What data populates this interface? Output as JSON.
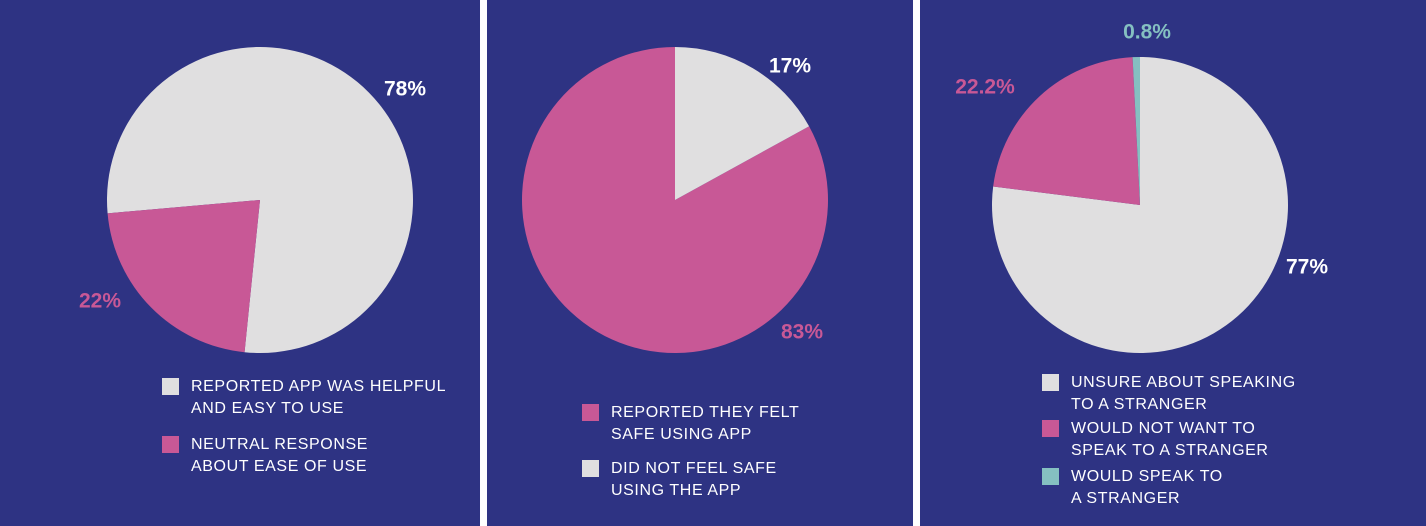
{
  "chart_data": [
    {
      "type": "pie",
      "categories": [
        "REPORTED APP WAS HELPFUL\nAND EASY TO USE",
        "NEUTRAL RESPONSE\nABOUT EASE OF USE"
      ],
      "values": [
        78,
        22
      ],
      "value_labels": [
        "78%",
        "22%"
      ],
      "colors": [
        "#e0dfe0",
        "#c85896"
      ]
    },
    {
      "type": "pie",
      "categories": [
        "REPORTED THEY FELT\nSAFE USING APP",
        "DID NOT FEEL SAFE\nUSING THE APP"
      ],
      "values": [
        83,
        17
      ],
      "value_labels": [
        "83%",
        "17%"
      ],
      "colors": [
        "#c85896",
        "#e0dfe0"
      ]
    },
    {
      "type": "pie",
      "categories": [
        "UNSURE ABOUT SPEAKING\nTO A STRANGER",
        "WOULD NOT WANT TO\nSPEAK TO A STRANGER",
        "WOULD SPEAK TO\nA STRANGER"
      ],
      "values": [
        77,
        22.2,
        0.8
      ],
      "value_labels": [
        "77%",
        "22.2%",
        "0.8%"
      ],
      "colors": [
        "#e0dfe0",
        "#c85896",
        "#85c0c1"
      ]
    }
  ]
}
